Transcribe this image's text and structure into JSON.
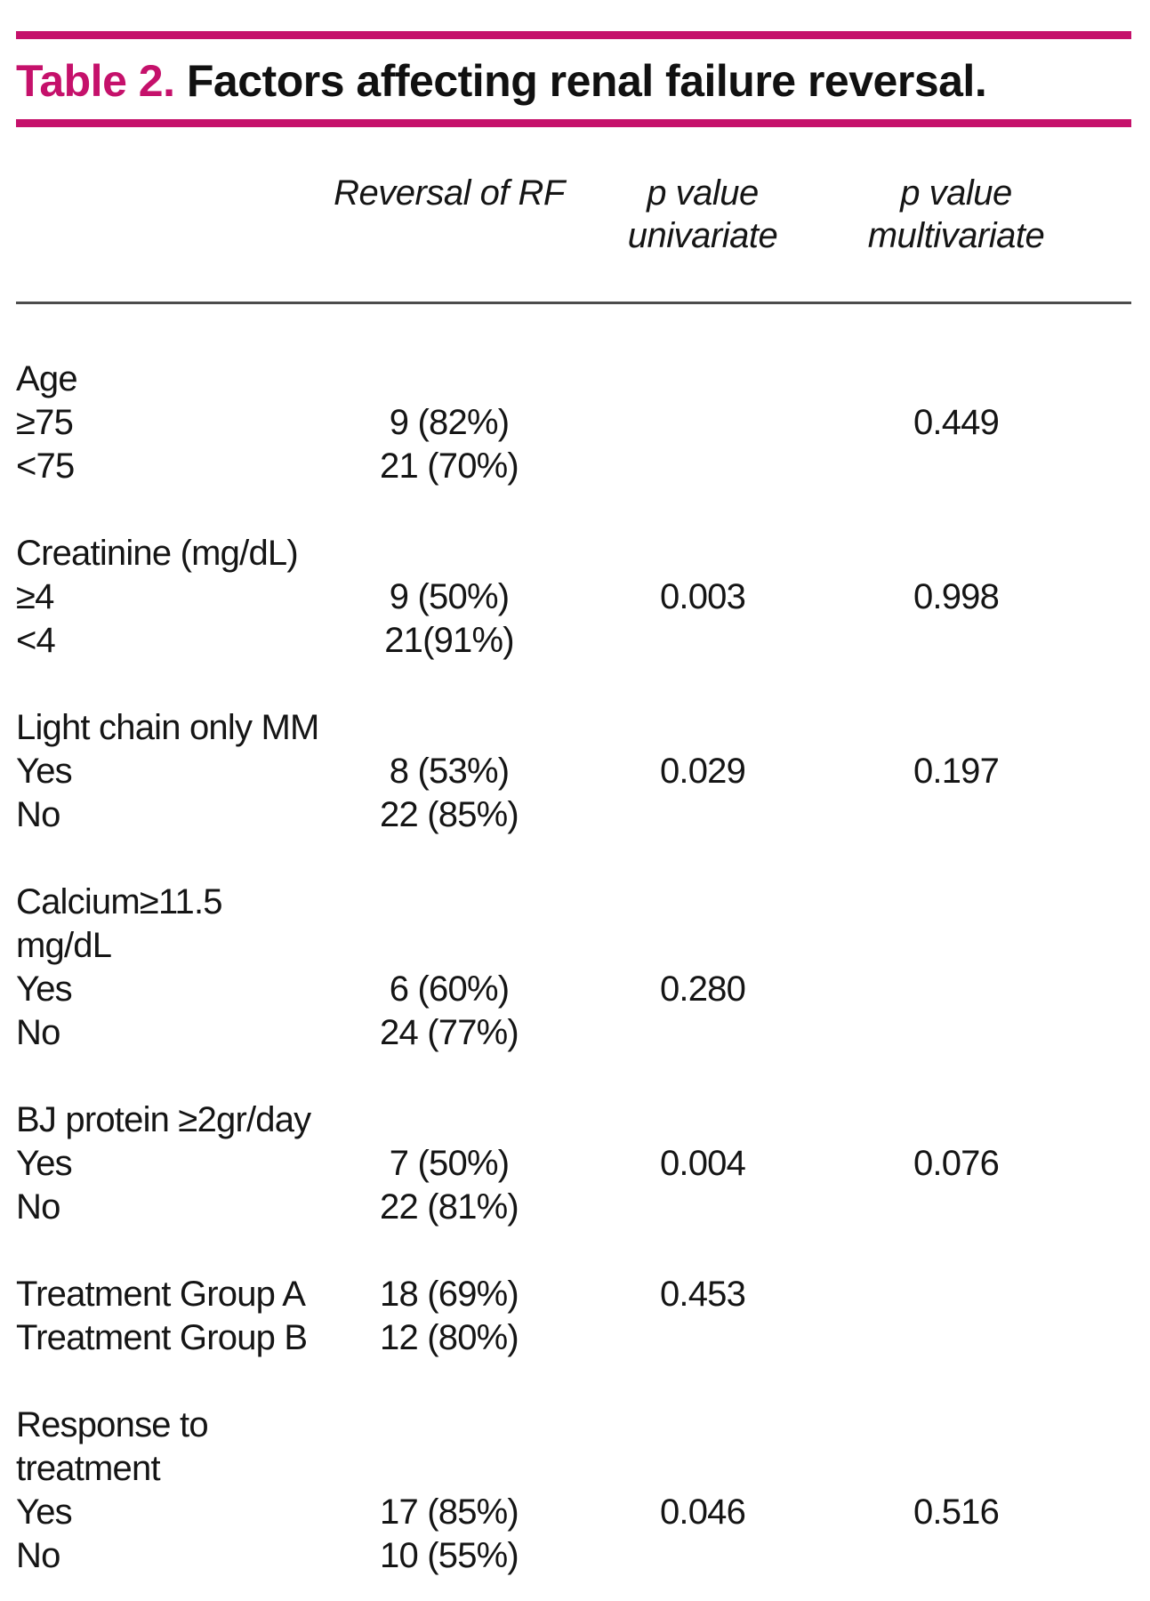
{
  "theme": {
    "accent_color": "#c5116b",
    "rule_color": "#4c4c4c"
  },
  "table": {
    "title_label": "Table 2.",
    "title_text": "Factors affecting renal failure reversal.",
    "header": {
      "reversal": "Reversal of RF",
      "p_uni_line1": "p value",
      "p_uni_line2": "univariate",
      "p_multi_line1": "p value",
      "p_multi_line2": "multivariate"
    },
    "groups": [
      {
        "heading": "Age",
        "rows": [
          {
            "label": "≥75",
            "reversal": "9 (82%)",
            "p_univariate": "",
            "p_multivariate": "0.449"
          },
          {
            "label": "<75",
            "reversal": "21 (70%)",
            "p_univariate": "",
            "p_multivariate": ""
          }
        ]
      },
      {
        "heading": "Creatinine (mg/dL)",
        "rows": [
          {
            "label": "≥4",
            "reversal": "9 (50%)",
            "p_univariate": "0.003",
            "p_multivariate": "0.998"
          },
          {
            "label": "<4",
            "reversal": "21(91%)",
            "p_univariate": "",
            "p_multivariate": ""
          }
        ]
      },
      {
        "heading": "Light chain only MM",
        "rows": [
          {
            "label": "Yes",
            "reversal": "8 (53%)",
            "p_univariate": "0.029",
            "p_multivariate": "0.197"
          },
          {
            "label": "No",
            "reversal": "22 (85%)",
            "p_univariate": "",
            "p_multivariate": ""
          }
        ]
      },
      {
        "heading": "Calcium≥11.5 mg/dL",
        "rows": [
          {
            "label": "Yes",
            "reversal": "6 (60%)",
            "p_univariate": "0.280",
            "p_multivariate": ""
          },
          {
            "label": "No",
            "reversal": "24 (77%)",
            "p_univariate": "",
            "p_multivariate": ""
          }
        ]
      },
      {
        "heading": "BJ protein ≥2gr/day",
        "rows": [
          {
            "label": "Yes",
            "reversal": "7 (50%)",
            "p_univariate": "0.004",
            "p_multivariate": "0.076"
          },
          {
            "label": "No",
            "reversal": "22 (81%)",
            "p_univariate": "",
            "p_multivariate": ""
          }
        ]
      },
      {
        "heading": "",
        "rows": [
          {
            "label": "Treatment Group A",
            "reversal": "18 (69%)",
            "p_univariate": "0.453",
            "p_multivariate": ""
          },
          {
            "label": "Treatment Group B",
            "reversal": "12 (80%)",
            "p_univariate": "",
            "p_multivariate": ""
          }
        ]
      },
      {
        "heading": "Response to treatment",
        "rows": [
          {
            "label": "Yes",
            "reversal": "17 (85%)",
            "p_univariate": "0.046",
            "p_multivariate": "0.516"
          },
          {
            "label": "No",
            "reversal": "10 (55%)",
            "p_univariate": "",
            "p_multivariate": ""
          }
        ]
      }
    ]
  }
}
